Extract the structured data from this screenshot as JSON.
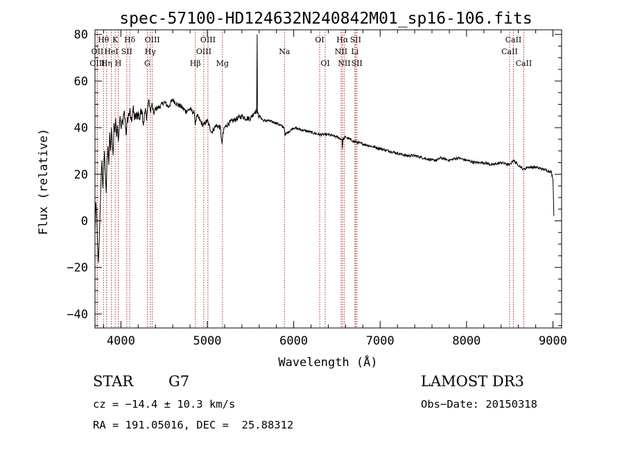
{
  "chart_data": {
    "type": "line",
    "title": "spec-57100-HD124632N240842M01_sp16-106.fits",
    "xlabel": "Wavelength (Å)",
    "ylabel": "Flux (relative)",
    "xlim": [
      3700,
      9100
    ],
    "ylim": [
      -46,
      82
    ],
    "xticks": [
      4000,
      5000,
      6000,
      7000,
      8000,
      9000
    ],
    "yticks": [
      -40,
      -20,
      0,
      20,
      40,
      60,
      80
    ],
    "series": [
      {
        "name": "spectrum",
        "x": [
          3700,
          3710,
          3720,
          3730,
          3740,
          3750,
          3760,
          3770,
          3780,
          3790,
          3800,
          3810,
          3820,
          3830,
          3840,
          3850,
          3860,
          3870,
          3880,
          3890,
          3900,
          3910,
          3920,
          3930,
          3940,
          3950,
          3960,
          3970,
          3980,
          3990,
          4000,
          4020,
          4040,
          4060,
          4080,
          4100,
          4120,
          4140,
          4160,
          4180,
          4200,
          4220,
          4240,
          4260,
          4280,
          4300,
          4320,
          4340,
          4360,
          4380,
          4400,
          4450,
          4500,
          4550,
          4600,
          4650,
          4700,
          4750,
          4800,
          4850,
          4860,
          4880,
          4900,
          4950,
          5000,
          5050,
          5100,
          5150,
          5170,
          5180,
          5200,
          5250,
          5300,
          5350,
          5400,
          5450,
          5500,
          5550,
          5570,
          5577,
          5580,
          5600,
          5650,
          5700,
          5800,
          5890,
          5900,
          6000,
          6100,
          6200,
          6300,
          6400,
          6500,
          6560,
          6563,
          6570,
          6600,
          6700,
          6800,
          6900,
          7000,
          7100,
          7200,
          7300,
          7400,
          7500,
          7600,
          7650,
          7700,
          7800,
          7900,
          8000,
          8100,
          8200,
          8300,
          8400,
          8500,
          8540,
          8600,
          8660,
          8700,
          8800,
          8900,
          8980,
          9000,
          9010
        ],
        "values": [
          -5,
          8,
          2,
          -10,
          -18,
          -8,
          5,
          18,
          26,
          14,
          22,
          30,
          20,
          12,
          26,
          32,
          24,
          38,
          30,
          40,
          33,
          28,
          42,
          38,
          44,
          36,
          41,
          34,
          39,
          45,
          40,
          42,
          46,
          38,
          44,
          47,
          43,
          48,
          44,
          45,
          46,
          44,
          49,
          42,
          47,
          45,
          52,
          47,
          50,
          46,
          48,
          49,
          51,
          49,
          52,
          50,
          49,
          47,
          48,
          46,
          42,
          45,
          44,
          41,
          43,
          38,
          41,
          40,
          33,
          37,
          40,
          42,
          43,
          44,
          45,
          44,
          44,
          47,
          47,
          80,
          46,
          45,
          43,
          43,
          42,
          40,
          37,
          40,
          39,
          38,
          37,
          37,
          36,
          35,
          31,
          35,
          36,
          34,
          33,
          32,
          31,
          30,
          29,
          28,
          28,
          27,
          26,
          26,
          27,
          26,
          27,
          26,
          25,
          25,
          24,
          25,
          24,
          26,
          24,
          22,
          23,
          23,
          22,
          21,
          18,
          2
        ]
      }
    ],
    "spectral_lines": [
      {
        "label": "Hθ",
        "wavelength": 3798,
        "row": 1
      },
      {
        "label": "OII",
        "wavelength": 3727,
        "row": 2
      },
      {
        "label": "OIII",
        "wavelength": 3727,
        "row": 3
      },
      {
        "label": "K",
        "wavelength": 3934,
        "row": 1
      },
      {
        "label": "HeI",
        "wavelength": 3889,
        "row": 2
      },
      {
        "label": "Hη",
        "wavelength": 3835,
        "row": 3
      },
      {
        "label": "SII",
        "wavelength": 4068,
        "row": 2
      },
      {
        "label": "H",
        "wavelength": 3969,
        "row": 3
      },
      {
        "label": "Hδ",
        "wavelength": 4102,
        "row": 1
      },
      {
        "label": "OIII",
        "wavelength": 4363,
        "row": 1
      },
      {
        "label": "Hγ",
        "wavelength": 4340,
        "row": 2
      },
      {
        "label": "G",
        "wavelength": 4305,
        "row": 3
      },
      {
        "label": "Hβ",
        "wavelength": 4861,
        "row": 3
      },
      {
        "label": "OIII",
        "wavelength": 5007,
        "row": 1
      },
      {
        "label": "OIII",
        "wavelength": 4959,
        "row": 2
      },
      {
        "label": "Mg",
        "wavelength": 5175,
        "row": 3
      },
      {
        "label": "Na",
        "wavelength": 5893,
        "row": 2
      },
      {
        "label": "OI",
        "wavelength": 6300,
        "row": 1
      },
      {
        "label": "OI",
        "wavelength": 6364,
        "row": 3
      },
      {
        "label": "Hα",
        "wavelength": 6563,
        "row": 1
      },
      {
        "label": "SII",
        "wavelength": 6716,
        "row": 1
      },
      {
        "label": "NII",
        "wavelength": 6548,
        "row": 2
      },
      {
        "label": "Li",
        "wavelength": 6708,
        "row": 2
      },
      {
        "label": "NII",
        "wavelength": 6584,
        "row": 3
      },
      {
        "label": "SII",
        "wavelength": 6731,
        "row": 3
      },
      {
        "label": "CaII",
        "wavelength": 8542,
        "row": 1
      },
      {
        "label": "CaII",
        "wavelength": 8498,
        "row": 2
      },
      {
        "label": "CaII",
        "wavelength": 8662,
        "row": 3
      }
    ]
  },
  "info": {
    "object_class": "STAR",
    "subclass": "G7",
    "survey": "LAMOST DR3",
    "redshift": "cz = −14.4 ± 10.3 km/s",
    "obs_date": "Obs−Date: 20150318",
    "coords": "RA = 191.05016, DEC =  25.88312"
  },
  "colors": {
    "spectrum": "#000000",
    "line_markers": "#b22222",
    "axes": "#000000"
  }
}
